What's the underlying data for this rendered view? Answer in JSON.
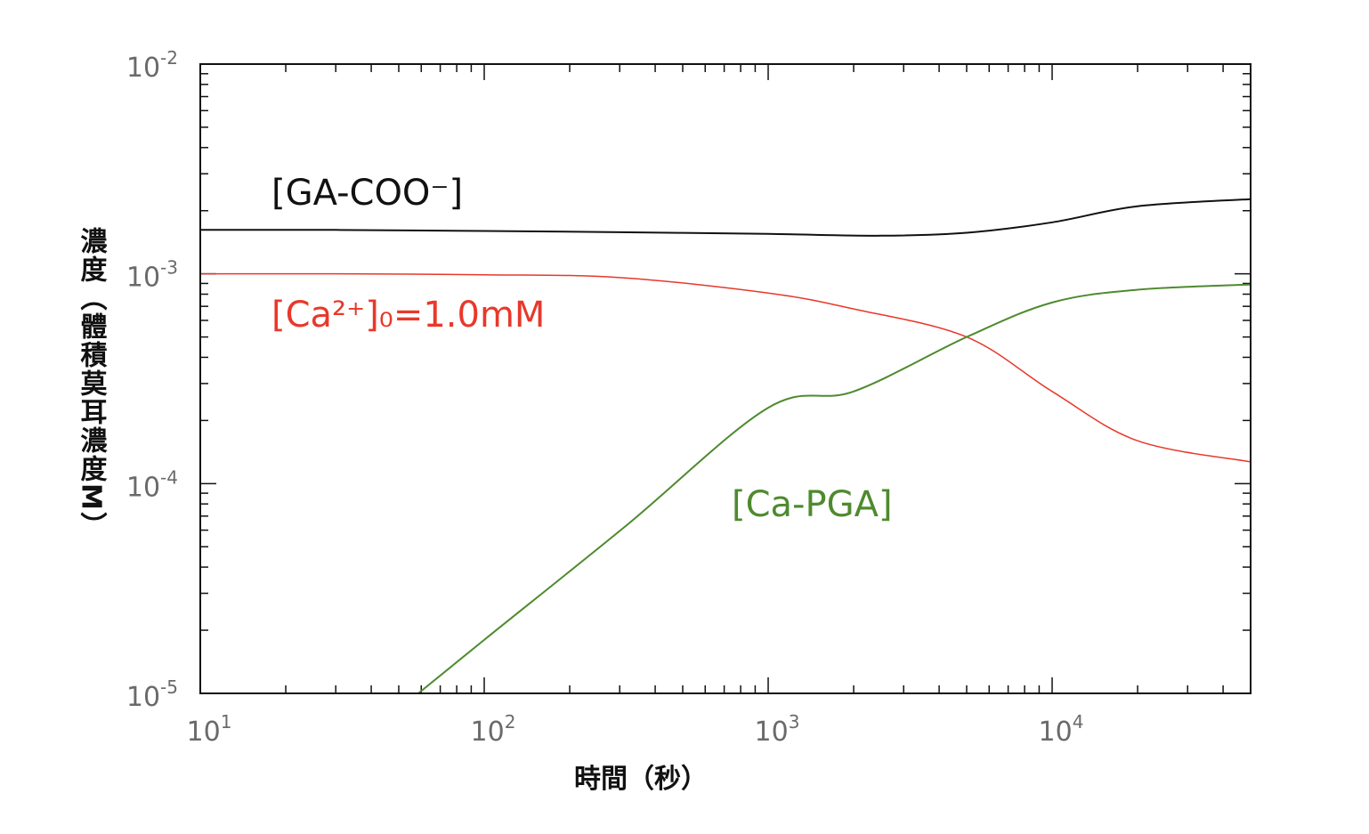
{
  "chart_data": {
    "type": "line",
    "title": "",
    "xlabel": "時間（秒）",
    "ylabel": "濃度（體積莫耳濃度M）",
    "xscale": "log",
    "yscale": "log",
    "xlim": [
      10,
      50000
    ],
    "ylim": [
      1e-05,
      0.01
    ],
    "grid": false,
    "xticks": [
      {
        "base": "10",
        "exp": "1",
        "value": 10
      },
      {
        "base": "10",
        "exp": "2",
        "value": 100
      },
      {
        "base": "10",
        "exp": "3",
        "value": 1000
      },
      {
        "base": "10",
        "exp": "4",
        "value": 10000
      }
    ],
    "yticks": [
      {
        "base": "10",
        "exp": "-2",
        "value": 0.01
      },
      {
        "base": "10",
        "exp": "-3",
        "value": 0.001
      },
      {
        "base": "10",
        "exp": "-4",
        "value": 0.0001
      },
      {
        "base": "10",
        "exp": "-5",
        "value": 1e-05
      }
    ],
    "series": [
      {
        "name": "[GA-COO⁻]",
        "label_text": "[GA-COO⁻]",
        "color": "#111111",
        "x": [
          10,
          30,
          100,
          300,
          1000,
          2500,
          5000,
          10000,
          20000,
          50000
        ],
        "y": [
          0.00162,
          0.00162,
          0.0016,
          0.00158,
          0.00155,
          0.00152,
          0.00157,
          0.00176,
          0.0021,
          0.00227
        ]
      },
      {
        "name": "[Ca²⁺]₀=1.0mM",
        "label_text": "[Ca²⁺]₀=1.0mM",
        "color": "#e8382a",
        "x": [
          10,
          30,
          100,
          300,
          1000,
          2000,
          5000,
          10000,
          20000,
          50000
        ],
        "y": [
          0.001,
          0.001,
          0.00099,
          0.00096,
          0.00081,
          0.00068,
          0.0005,
          0.000275,
          0.00016,
          0.000127
        ]
      },
      {
        "name": "[Ca-PGA]",
        "label_text": "[Ca-PGA]",
        "color": "#4e8a2e",
        "x": [
          58.6,
          100,
          316,
          1000,
          2000,
          5000,
          10000,
          20000,
          50000
        ],
        "y": [
          1e-05,
          1.8e-05,
          6.3e-05,
          0.00023,
          0.000275,
          0.0005,
          0.00073,
          0.00084,
          0.00089
        ]
      }
    ]
  }
}
